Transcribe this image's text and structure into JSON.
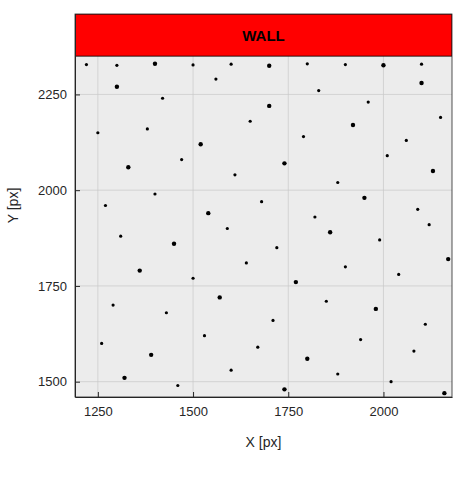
{
  "chart_data": {
    "type": "scatter",
    "x_label": "X [px]",
    "y_label": "Y [px]",
    "xlim": [
      1190,
      2180
    ],
    "ylim": [
      1460,
      2460
    ],
    "xticks": [
      1250,
      1500,
      1750,
      2000
    ],
    "yticks": [
      1500,
      1750,
      2000,
      2250
    ],
    "grid": true,
    "color": "#000000",
    "marker": "circle",
    "annotations": [
      {
        "text": "WALL",
        "y0": 2350,
        "y1": 2460,
        "color": "#ff0000"
      }
    ],
    "x": [
      1300,
      1420,
      1560,
      1700,
      1830,
      1960,
      2100,
      1250,
      1380,
      1520,
      1650,
      1790,
      1920,
      2060,
      2150,
      1330,
      1470,
      1610,
      1740,
      1880,
      2010,
      2130,
      1270,
      1400,
      1540,
      1680,
      1820,
      1950,
      2090,
      1310,
      1450,
      1590,
      1720,
      1860,
      1990,
      2120,
      1360,
      1500,
      1640,
      1770,
      1900,
      2040,
      2170,
      1290,
      1430,
      1570,
      1710,
      1850,
      1980,
      2110,
      1260,
      1390,
      1530,
      1670,
      1800,
      1940,
      2080,
      1320,
      1460,
      1600,
      1740,
      1880,
      2020,
      2160,
      1220,
      1300,
      1400,
      1500,
      1600,
      1700,
      1800,
      1900,
      2000,
      2100
    ],
    "values": [
      2270,
      2240,
      2290,
      2220,
      2260,
      2230,
      2280,
      2150,
      2160,
      2120,
      2180,
      2140,
      2170,
      2130,
      2190,
      2060,
      2080,
      2040,
      2070,
      2020,
      2090,
      2050,
      1960,
      1990,
      1940,
      1970,
      1930,
      1980,
      1950,
      1880,
      1860,
      1900,
      1850,
      1890,
      1870,
      1910,
      1790,
      1770,
      1810,
      1760,
      1800,
      1780,
      1820,
      1700,
      1680,
      1720,
      1660,
      1710,
      1690,
      1650,
      1600,
      1570,
      1620,
      1590,
      1560,
      1610,
      1580,
      1510,
      1490,
      1530,
      1480,
      1520,
      1500,
      1470,
      2328,
      2326,
      2330,
      2327,
      2329,
      2325,
      2330,
      2328,
      2326,
      2329
    ]
  }
}
